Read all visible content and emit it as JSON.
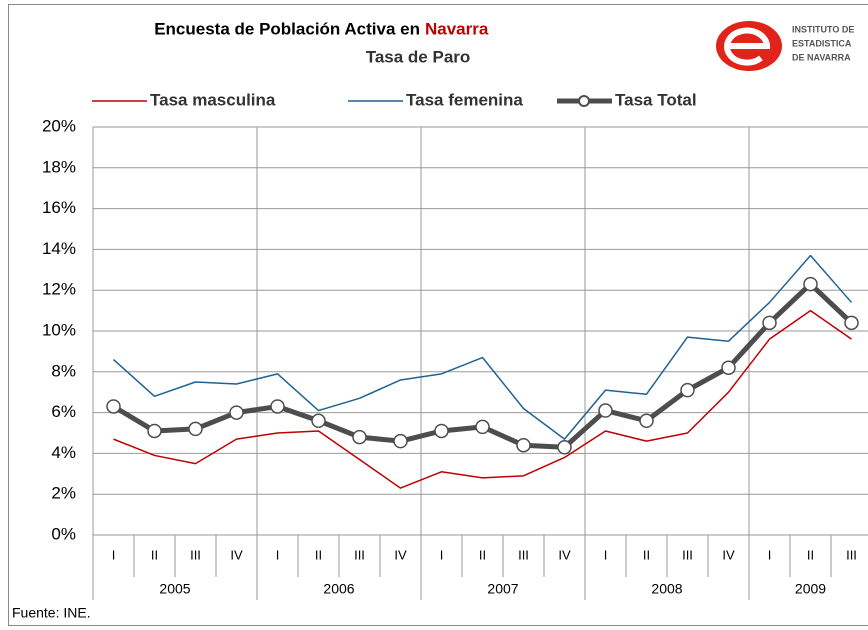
{
  "chart_data": {
    "type": "line",
    "title": "Encuesta de Población Activa en",
    "title_highlight": "Navarra",
    "subtitle": "Tasa de Paro",
    "logo": [
      "INSTITUTO DE",
      "ESTADISTICA",
      "DE NAVARRA"
    ],
    "source": "Fuente: INE.",
    "groups": [
      {
        "name": "2005",
        "categories": [
          "I",
          "II",
          "III",
          "IV"
        ]
      },
      {
        "name": "2006",
        "categories": [
          "I",
          "II",
          "III",
          "IV"
        ]
      },
      {
        "name": "2007",
        "categories": [
          "I",
          "II",
          "III",
          "IV"
        ]
      },
      {
        "name": "2008",
        "categories": [
          "I",
          "II",
          "III",
          "IV"
        ]
      },
      {
        "name": "2009",
        "categories": [
          "I",
          "II",
          "III"
        ]
      }
    ],
    "series": [
      {
        "name": "Tasa masculina",
        "color": "#c00000",
        "width": 1.5,
        "markers": false,
        "values": [
          4.7,
          3.9,
          3.5,
          4.7,
          5.0,
          5.1,
          3.7,
          2.3,
          3.1,
          2.8,
          2.9,
          3.8,
          5.1,
          4.6,
          5.0,
          7.0,
          9.6,
          11.0,
          9.6
        ]
      },
      {
        "name": "Tasa femenina",
        "color": "#1f6391",
        "width": 1.5,
        "markers": false,
        "values": [
          8.6,
          6.8,
          7.5,
          7.4,
          7.9,
          6.1,
          6.7,
          7.6,
          7.9,
          8.7,
          6.2,
          4.7,
          7.1,
          6.9,
          9.7,
          9.5,
          11.4,
          13.7,
          11.4
        ]
      },
      {
        "name": "Tasa Total",
        "color": "#4d4d4d",
        "width": 5,
        "markers": true,
        "values": [
          6.3,
          5.1,
          5.2,
          6.0,
          6.3,
          5.6,
          4.8,
          4.6,
          5.1,
          5.3,
          4.4,
          4.3,
          6.1,
          5.6,
          7.1,
          8.2,
          10.4,
          12.3,
          10.4
        ]
      }
    ],
    "ylim": [
      0,
      20
    ],
    "yticks": [
      {
        "value": 0,
        "label": "0%"
      },
      {
        "value": 2,
        "label": "2%"
      },
      {
        "value": 4,
        "label": "4%"
      },
      {
        "value": 6,
        "label": "6%"
      },
      {
        "value": 8,
        "label": "8%"
      },
      {
        "value": 10,
        "label": "10%"
      },
      {
        "value": 12,
        "label": "12%"
      },
      {
        "value": 14,
        "label": "14%"
      },
      {
        "value": 16,
        "label": "16%"
      },
      {
        "value": 18,
        "label": "18%"
      },
      {
        "value": 20,
        "label": "20%"
      }
    ],
    "grid": true
  }
}
